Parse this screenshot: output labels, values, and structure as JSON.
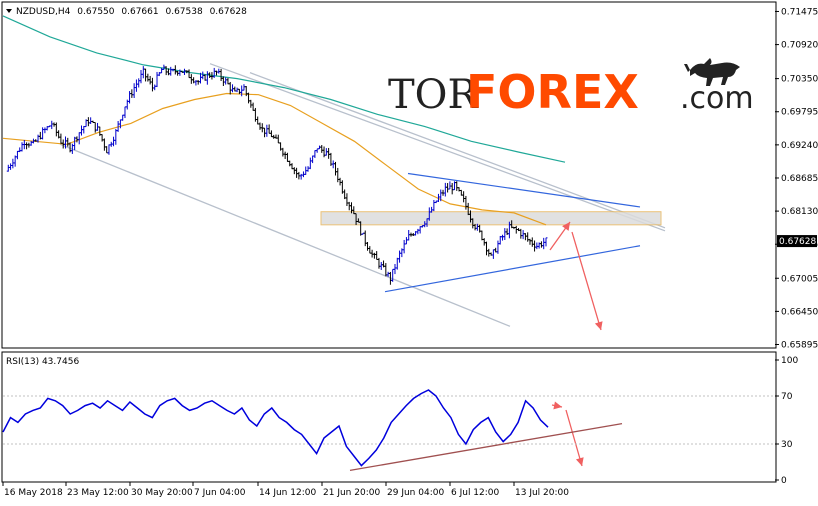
{
  "header": {
    "menu_icon": "triangle-down-icon",
    "symbol": "NZDUSD,H4",
    "open": "0.67550",
    "high": "0.67661",
    "low": "0.67538",
    "close": "0.67628"
  },
  "logo": {
    "part1": "TOR",
    "part2": "FOREX",
    "part3": ".com",
    "icon": "bull-icon"
  },
  "current_price": "0.67628",
  "rsi_header": "RSI(13) 43.7456",
  "colors": {
    "bull_candle": "#0000cc",
    "bear_candle": "#000000",
    "ma_fast": "#e8a020",
    "ma_slow": "#20a898",
    "channel_line": "#b8c0cc",
    "triangle_line": "#3366dd",
    "zone_fill": "#dcdcdc",
    "zone_border": "#e8b860",
    "arrow": "#f06060",
    "rsi_line": "#0000dd",
    "rsi_trend": "#a05050",
    "logo_orange": "#ff4a00"
  },
  "chart_data": [
    {
      "type": "candlestick",
      "title": "NZDUSD,H4",
      "y_ticks": [
        "0.71475",
        "0.70920",
        "0.70350",
        "0.69795",
        "0.69240",
        "0.68685",
        "0.68130",
        "0.67575",
        "0.67005",
        "0.66450",
        "0.65895"
      ],
      "ylim": [
        0.6587,
        0.716
      ],
      "x_ticks": [
        "16 May 2018",
        "23 May 12:00",
        "30 May 20:00",
        "7 Jun 04:00",
        "14 Jun 12:00",
        "21 Jun 20:00",
        "29 Jun 04:00",
        "6 Jul 12:00",
        "13 Jul 20:00"
      ],
      "close_path": [
        {
          "t": 0,
          "c": 0.688
        },
        {
          "t": 2,
          "c": 0.6905
        },
        {
          "t": 4,
          "c": 0.693
        },
        {
          "t": 6,
          "c": 0.6925
        },
        {
          "t": 8,
          "c": 0.6945
        },
        {
          "t": 10,
          "c": 0.696
        },
        {
          "t": 12,
          "c": 0.693
        },
        {
          "t": 14,
          "c": 0.692
        },
        {
          "t": 16,
          "c": 0.6945
        },
        {
          "t": 18,
          "c": 0.6965
        },
        {
          "t": 20,
          "c": 0.695
        },
        {
          "t": 22,
          "c": 0.6915
        },
        {
          "t": 24,
          "c": 0.6945
        },
        {
          "t": 26,
          "c": 0.699
        },
        {
          "t": 28,
          "c": 0.702
        },
        {
          "t": 30,
          "c": 0.7045
        },
        {
          "t": 32,
          "c": 0.702
        },
        {
          "t": 34,
          "c": 0.705
        },
        {
          "t": 36,
          "c": 0.7045
        },
        {
          "t": 38,
          "c": 0.705
        },
        {
          "t": 40,
          "c": 0.704
        },
        {
          "t": 42,
          "c": 0.703
        },
        {
          "t": 44,
          "c": 0.704
        },
        {
          "t": 46,
          "c": 0.7045
        },
        {
          "t": 48,
          "c": 0.703
        },
        {
          "t": 50,
          "c": 0.701
        },
        {
          "t": 52,
          "c": 0.702
        },
        {
          "t": 54,
          "c": 0.698
        },
        {
          "t": 56,
          "c": 0.695
        },
        {
          "t": 58,
          "c": 0.694
        },
        {
          "t": 60,
          "c": 0.692
        },
        {
          "t": 62,
          "c": 0.6895
        },
        {
          "t": 64,
          "c": 0.687
        },
        {
          "t": 66,
          "c": 0.6885
        },
        {
          "t": 68,
          "c": 0.692
        },
        {
          "t": 70,
          "c": 0.691
        },
        {
          "t": 72,
          "c": 0.688
        },
        {
          "t": 74,
          "c": 0.684
        },
        {
          "t": 76,
          "c": 0.681
        },
        {
          "t": 78,
          "c": 0.677
        },
        {
          "t": 80,
          "c": 0.674
        },
        {
          "t": 82,
          "c": 0.672
        },
        {
          "t": 84,
          "c": 0.67
        },
        {
          "t": 86,
          "c": 0.674
        },
        {
          "t": 88,
          "c": 0.677
        },
        {
          "t": 90,
          "c": 0.6785
        },
        {
          "t": 92,
          "c": 0.68
        },
        {
          "t": 94,
          "c": 0.683
        },
        {
          "t": 96,
          "c": 0.685
        },
        {
          "t": 98,
          "c": 0.6855
        },
        {
          "t": 100,
          "c": 0.683
        },
        {
          "t": 102,
          "c": 0.6795
        },
        {
          "t": 104,
          "c": 0.677
        },
        {
          "t": 106,
          "c": 0.6735
        },
        {
          "t": 108,
          "c": 0.6765
        },
        {
          "t": 110,
          "c": 0.6785
        },
        {
          "t": 112,
          "c": 0.678
        },
        {
          "t": 114,
          "c": 0.6765
        },
        {
          "t": 116,
          "c": 0.6755
        },
        {
          "t": 118,
          "c": 0.6763
        }
      ],
      "ma_fast": [
        0.6935,
        0.693,
        0.6925,
        0.6945,
        0.696,
        0.6985,
        0.7,
        0.701,
        0.7008,
        0.699,
        0.696,
        0.693,
        0.689,
        0.685,
        0.6825,
        0.6815,
        0.681,
        0.679
      ],
      "ma_slow": [
        0.714,
        0.7105,
        0.7078,
        0.7058,
        0.7045,
        0.7035,
        0.702,
        0.7,
        0.6975,
        0.6955,
        0.693,
        0.6912,
        0.6895
      ],
      "resistance_zone": [
        0.679,
        0.6812
      ],
      "current_price": 0.67628
    },
    {
      "type": "line",
      "title": "RSI(13) 43.7456",
      "y_ticks": [
        "100",
        "70",
        "30",
        "0"
      ],
      "ylim": [
        0,
        100
      ],
      "levels": [
        70,
        30
      ],
      "values": [
        40,
        52,
        48,
        55,
        58,
        60,
        68,
        66,
        62,
        55,
        58,
        62,
        64,
        60,
        66,
        62,
        58,
        65,
        60,
        55,
        52,
        62,
        66,
        68,
        62,
        58,
        60,
        64,
        66,
        62,
        58,
        55,
        60,
        50,
        45,
        55,
        60,
        52,
        48,
        42,
        38,
        30,
        22,
        35,
        40,
        45,
        28,
        20,
        12,
        18,
        25,
        35,
        48,
        55,
        62,
        68,
        72,
        75,
        70,
        60,
        52,
        38,
        30,
        42,
        48,
        52,
        40,
        32,
        38,
        48,
        66,
        60,
        50,
        44
      ]
    }
  ]
}
